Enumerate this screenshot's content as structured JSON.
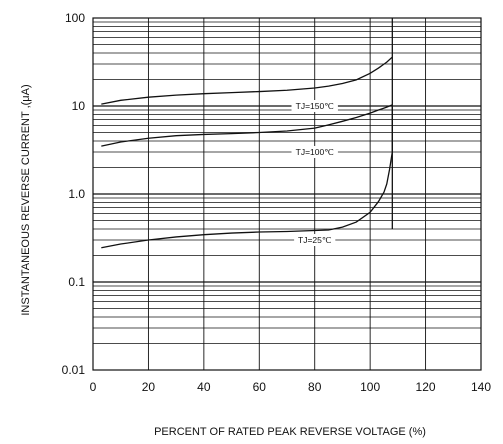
{
  "chart_data": {
    "type": "line",
    "xlabel": "PERCENT OF RATED PEAK REVERSE VOLTAGE (%)",
    "ylabel": "INSTANTANEOUS REVERSE CURRENT ,(μA)",
    "xlim": [
      0,
      140
    ],
    "ylim": [
      0.01,
      100
    ],
    "yscale": "log",
    "grid": true,
    "x_ticks": [
      "0",
      "20",
      "40",
      "60",
      "80",
      "100",
      "120",
      "140"
    ],
    "y_ticks": [
      "0.01",
      "0.1",
      "1.0",
      "10",
      "100"
    ],
    "series": [
      {
        "name": "TJ=150℃",
        "x": [
          3,
          10,
          20,
          30,
          40,
          50,
          60,
          70,
          80,
          85,
          90,
          95,
          100,
          103,
          106,
          108
        ],
        "y": [
          10.5,
          11.6,
          12.6,
          13.3,
          13.8,
          14.2,
          14.6,
          15.1,
          16.0,
          16.8,
          18.0,
          19.8,
          23.5,
          27.0,
          31.5,
          36.0
        ]
      },
      {
        "name": "TJ=100℃",
        "x": [
          3,
          10,
          20,
          30,
          40,
          50,
          60,
          70,
          80,
          85,
          90,
          95,
          100,
          103,
          106,
          108
        ],
        "y": [
          3.5,
          3.9,
          4.3,
          4.6,
          4.75,
          4.85,
          5.0,
          5.2,
          5.6,
          6.1,
          6.7,
          7.4,
          8.3,
          9.0,
          9.7,
          10.3
        ]
      },
      {
        "name": "TJ=25℃",
        "x": [
          3,
          10,
          20,
          30,
          40,
          50,
          60,
          70,
          80,
          85,
          90,
          95,
          100,
          103,
          105,
          106,
          107,
          108,
          108,
          108
        ],
        "y": [
          0.245,
          0.27,
          0.3,
          0.325,
          0.345,
          0.36,
          0.37,
          0.375,
          0.385,
          0.39,
          0.42,
          0.48,
          0.62,
          0.82,
          1.05,
          1.3,
          1.9,
          3.0,
          6.5,
          10.0
        ]
      }
    ],
    "labels": [
      {
        "text": "TJ=150℃",
        "x": 80,
        "y": 10
      },
      {
        "text": "TJ=100℃",
        "x": 80,
        "y": 3
      },
      {
        "text": "TJ=25℃",
        "x": 80,
        "y": 0.3
      }
    ],
    "vertical_line": {
      "x": 108,
      "from": 0.4,
      "to": 100
    }
  }
}
